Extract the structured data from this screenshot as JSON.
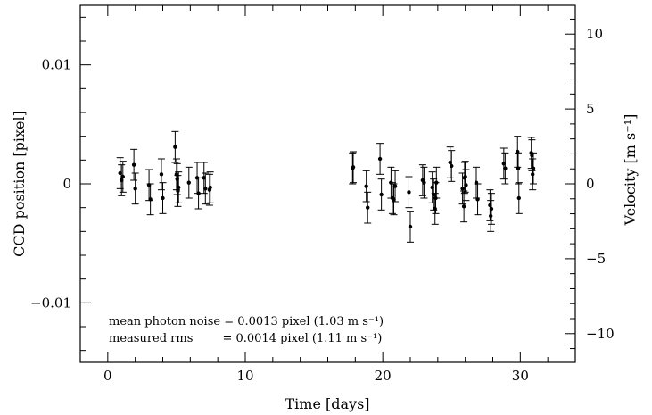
{
  "chart_data": {
    "type": "scatter",
    "xlabel": "Time [days]",
    "ylabel_left": "CCD position [pixel]",
    "ylabel_right": "Velocity [m s⁻¹]",
    "xlim": [
      -2,
      34
    ],
    "ylim_left": [
      -0.015,
      0.015
    ],
    "ylim_right": [
      -11.92,
      11.92
    ],
    "x_ticks": [
      "0",
      "10",
      "20",
      "30"
    ],
    "x_tick_values": [
      0,
      10,
      20,
      30
    ],
    "y_ticks_left": [
      "−0.01",
      "0",
      "0.01"
    ],
    "y_tick_values_left": [
      -0.01,
      0,
      0.01
    ],
    "y_ticks_right": [
      "−10",
      "−5",
      "0",
      "5",
      "10"
    ],
    "y_tick_values_right": [
      -10,
      -5,
      0,
      5,
      10
    ],
    "annotations": [
      "mean photon noise = 0.0013 pixel (1.03 m s⁻¹)",
      "measured rms        = 0.0014 pixel (1.11 m s⁻¹)"
    ],
    "grid": false,
    "series": [
      {
        "error": 0.0013,
        "points": [
          {
            "x": 0.9,
            "y": 0.0009
          },
          {
            "x": 1.0,
            "y": 0.0003
          },
          {
            "x": 1.1,
            "y": 0.0006
          },
          {
            "x": 1.9,
            "y": 0.0016
          },
          {
            "x": 2.0,
            "y": -0.0004
          },
          {
            "x": 3.0,
            "y": -0.0001
          },
          {
            "x": 3.1,
            "y": -0.0013
          },
          {
            "x": 3.9,
            "y": 0.0008
          },
          {
            "x": 4.0,
            "y": -0.0012
          },
          {
            "x": 4.9,
            "y": 0.0031
          },
          {
            "x": 5.0,
            "y": 0.0008
          },
          {
            "x": 5.05,
            "y": 0.0004
          },
          {
            "x": 5.1,
            "y": -0.0006
          },
          {
            "x": 5.15,
            "y": -0.0003
          },
          {
            "x": 5.9,
            "y": 0.0001
          },
          {
            "x": 6.5,
            "y": 0.0005
          },
          {
            "x": 6.6,
            "y": -0.0008
          },
          {
            "x": 7.0,
            "y": 0.0005
          },
          {
            "x": 7.1,
            "y": -0.0004
          },
          {
            "x": 7.4,
            "y": -0.0005
          },
          {
            "x": 7.45,
            "y": -0.0003
          },
          {
            "x": 17.8,
            "y": 0.0013
          },
          {
            "x": 17.85,
            "y": 0.0014
          },
          {
            "x": 18.8,
            "y": -0.0002
          },
          {
            "x": 18.9,
            "y": -0.002
          },
          {
            "x": 19.8,
            "y": 0.0021
          },
          {
            "x": 19.9,
            "y": -0.0009
          },
          {
            "x": 20.6,
            "y": 0.0001
          },
          {
            "x": 20.7,
            "y": -0.0012
          },
          {
            "x": 20.8,
            "y": -0.0013
          },
          {
            "x": 20.9,
            "y": -0.0002
          },
          {
            "x": 21.9,
            "y": -0.0007
          },
          {
            "x": 22.0,
            "y": -0.0036
          },
          {
            "x": 22.9,
            "y": 0.0003
          },
          {
            "x": 23.0,
            "y": 0.0001
          },
          {
            "x": 23.6,
            "y": -0.0003
          },
          {
            "x": 23.7,
            "y": -0.0009
          },
          {
            "x": 23.8,
            "y": -0.0021
          },
          {
            "x": 23.85,
            "y": -0.0012
          },
          {
            "x": 23.9,
            "y": 0.0001
          },
          {
            "x": 24.9,
            "y": 0.0018
          },
          {
            "x": 25.0,
            "y": 0.0015
          },
          {
            "x": 25.8,
            "y": -0.0004
          },
          {
            "x": 25.9,
            "y": -0.0019
          },
          {
            "x": 25.95,
            "y": 0.0005
          },
          {
            "x": 26.0,
            "y": 0.0006
          },
          {
            "x": 26.05,
            "y": -0.0001
          },
          {
            "x": 26.8,
            "y": 0.0001
          },
          {
            "x": 26.9,
            "y": -0.0013
          },
          {
            "x": 27.8,
            "y": -0.0018
          },
          {
            "x": 27.85,
            "y": -0.0027
          },
          {
            "x": 27.9,
            "y": -0.0021
          },
          {
            "x": 28.8,
            "y": 0.0017
          },
          {
            "x": 28.9,
            "y": 0.0013
          },
          {
            "x": 29.8,
            "y": 0.0027
          },
          {
            "x": 29.85,
            "y": 0.0013
          },
          {
            "x": 29.9,
            "y": -0.0012
          },
          {
            "x": 30.8,
            "y": 0.0026
          },
          {
            "x": 30.85,
            "y": 0.0024
          },
          {
            "x": 30.9,
            "y": 0.0008
          },
          {
            "x": 30.95,
            "y": 0.0013
          }
        ]
      }
    ]
  }
}
